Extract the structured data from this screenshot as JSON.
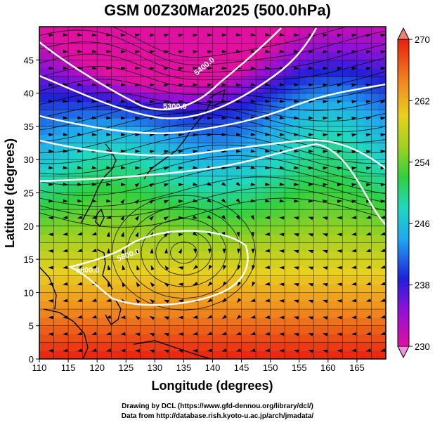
{
  "title": "GSM 00Z30Mar2025 (500.0hPa)",
  "xlabel": "Longitude (degrees)",
  "ylabel": "Latitude  (degrees)",
  "x_ticks": [
    "110",
    "115",
    "120",
    "125",
    "130",
    "135",
    "140",
    "145",
    "150",
    "155",
    "160",
    "165"
  ],
  "y_ticks": [
    "0",
    "5",
    "10",
    "15",
    "20",
    "25",
    "30",
    "35",
    "40",
    "45"
  ],
  "colorbar": {
    "min": 230,
    "max": 270,
    "labels": [
      "270",
      "262",
      "254",
      "246",
      "238",
      "230"
    ],
    "colors": [
      "#e0108c",
      "#8a10d8",
      "#2020e0",
      "#20a0f0",
      "#20d8d8",
      "#20d060",
      "#60d020",
      "#d8d020",
      "#f0a020",
      "#f06020",
      "#f03018",
      "#e82010"
    ]
  },
  "contour_labels": [
    "5300.0",
    "5400.0",
    "5800.0",
    "5800.0"
  ],
  "credits": {
    "drawing": "Drawing by DCL (https://www.gfd-dennou.org/library/dcl/)",
    "data": "Data from http://database.rish.kyoto-u.ac.jp/arch/jmadata/"
  },
  "chart_data": {
    "type": "heatmap",
    "title": "GSM 00Z30Mar2025 (500.0hPa)",
    "xlabel": "Longitude (degrees)",
    "ylabel": "Latitude  (degrees)",
    "xlim": [
      110,
      170
    ],
    "ylim": [
      0,
      50
    ],
    "colorbar_range": [
      230,
      270
    ],
    "field": "temperature shading (K) with geopotential height contours and wind streamlines",
    "contour_levels_labeled": [
      5300,
      5400,
      5800
    ],
    "high_center": {
      "lon": 135,
      "lat": 16
    },
    "cold_center": {
      "lon": 132,
      "lat": 49
    },
    "colormap": "magenta-blue-cyan-green-yellow-orange-red"
  }
}
